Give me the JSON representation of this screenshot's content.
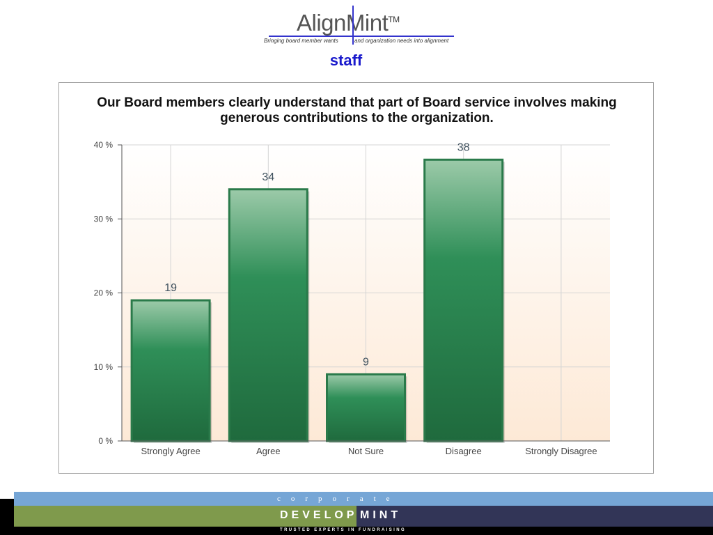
{
  "header": {
    "logo_text_left": "Align",
    "logo_text_right": "Mint",
    "logo_tm": "TM",
    "tagline_left": "Bringing board member wants",
    "tagline_right": "and organization needs into alignment",
    "audience": "staff"
  },
  "chart_data": {
    "type": "bar",
    "title": "Our Board members clearly understand that part of Board service involves making generous contributions to the organization.",
    "categories": [
      "Strongly Agree",
      "Agree",
      "Not Sure",
      "Disagree",
      "Strongly Disagree"
    ],
    "values": [
      19,
      34,
      9,
      38,
      0
    ],
    "data_labels": [
      "19",
      "34",
      "9",
      "38",
      ""
    ],
    "y_ticks": [
      "0 %",
      "10 %",
      "20 %",
      "30 %",
      "40 %"
    ],
    "ylim": [
      0,
      40
    ],
    "y_unit": "%",
    "grid": true,
    "colors": {
      "bar": "#2e8b57",
      "bar_dark": "#1f6b3e",
      "bar_light": "#8fc0a0",
      "bar_border": "#2a7a4a"
    }
  },
  "footer": {
    "corporate": "corporate",
    "develop": "DEVELOP",
    "mint": "MINT",
    "tagline": "TRUSTED EXPERTS IN FUNDRAISING",
    "colors": {
      "blue": "#76a6d6",
      "green": "#7f9a4c",
      "navy": "#323557"
    }
  }
}
